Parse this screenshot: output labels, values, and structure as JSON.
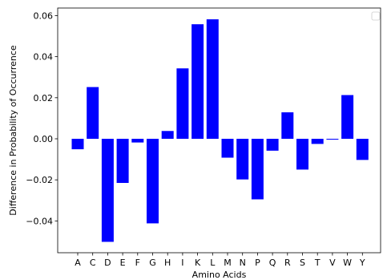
{
  "chart_data": {
    "type": "bar",
    "title": "",
    "xlabel": "Amino Acids",
    "ylabel": "Difference in Probability of Occurrence",
    "categories": [
      "A",
      "C",
      "D",
      "E",
      "F",
      "G",
      "H",
      "I",
      "K",
      "L",
      "M",
      "N",
      "P",
      "Q",
      "R",
      "S",
      "T",
      "V",
      "W",
      "Y"
    ],
    "values": [
      -0.0051,
      0.0252,
      -0.0502,
      -0.0215,
      -0.0018,
      -0.0412,
      0.0038,
      0.0343,
      0.0558,
      0.0582,
      -0.0092,
      -0.0198,
      -0.0295,
      -0.0058,
      0.0129,
      -0.015,
      -0.0025,
      -0.0004,
      0.0213,
      -0.0103
    ],
    "ylim": [
      -0.0555,
      0.0637
    ],
    "yticks": [
      -0.04,
      -0.02,
      0.0,
      0.02,
      0.04,
      0.06
    ],
    "ytick_labels": [
      "−0.04",
      "−0.02",
      "0.00",
      "0.02",
      "0.04",
      "0.06"
    ],
    "bar_color": "#0000ff",
    "grid": false,
    "legend": "top-right, empty"
  }
}
